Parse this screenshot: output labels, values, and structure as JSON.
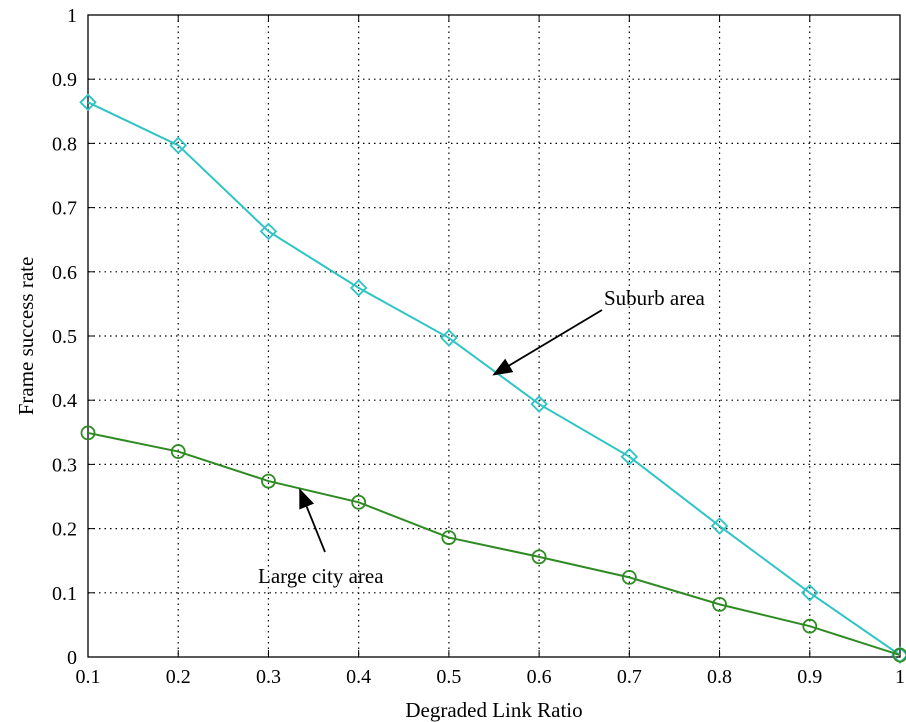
{
  "chart_data": {
    "type": "line",
    "title": "",
    "xlabel": "Degraded Link Ratio",
    "ylabel": "Frame success rate",
    "xlim": [
      0.1,
      1
    ],
    "ylim": [
      0,
      1
    ],
    "xticks": [
      "0.1",
      "0.2",
      "0.3",
      "0.4",
      "0.5",
      "0.6",
      "0.7",
      "0.8",
      "0.9",
      "1"
    ],
    "yticks": [
      "0",
      "0.1",
      "0.2",
      "0.3",
      "0.4",
      "0.5",
      "0.6",
      "0.7",
      "0.8",
      "0.9",
      "1"
    ],
    "grid": true,
    "x": [
      0.1,
      0.2,
      0.3,
      0.4,
      0.5,
      0.6,
      0.7,
      0.8,
      0.9,
      1.0
    ],
    "series": [
      {
        "name": "Suburb area",
        "values": [
          0.864,
          0.797,
          0.663,
          0.575,
          0.497,
          0.394,
          0.312,
          0.204,
          0.1,
          0.003
        ],
        "color": "#2ec4c4",
        "marker": "diamond"
      },
      {
        "name": "Large city area",
        "values": [
          0.349,
          0.32,
          0.274,
          0.241,
          0.186,
          0.156,
          0.124,
          0.082,
          0.048,
          0.003
        ],
        "color": "#2e8b22",
        "marker": "circle"
      }
    ],
    "annotations": [
      {
        "text": "Suburb area",
        "arrow_to": [
          0.55,
          0.44
        ]
      },
      {
        "text": "Large city area",
        "arrow_to": [
          0.335,
          0.26
        ]
      }
    ]
  }
}
